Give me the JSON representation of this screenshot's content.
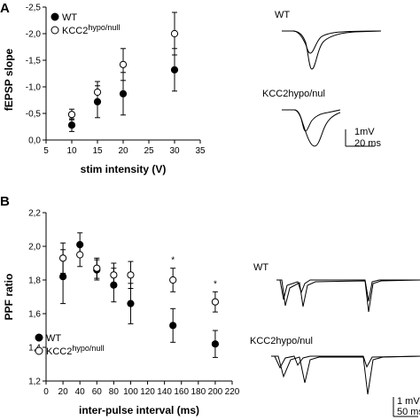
{
  "chart_data": [
    {
      "type": "scatter",
      "panel": "A",
      "xlabel": "stim intensity (V)",
      "ylabel": "fEPSP slope",
      "xlim": [
        5,
        35
      ],
      "ylim": [
        0,
        -2.5
      ],
      "x_ticks": [
        "5",
        "10",
        "15",
        "20",
        "25",
        "30",
        "35"
      ],
      "y_ticks": [
        "0,0",
        "-0,5",
        "-1,0",
        "-1,5",
        "-2,0",
        "-2,5"
      ],
      "x": [
        10,
        15,
        20,
        30
      ],
      "series": [
        {
          "name": "WT",
          "marker": "filled",
          "values": [
            -0.28,
            -0.72,
            -0.87,
            -1.32
          ],
          "errors": [
            0.12,
            0.3,
            0.4,
            0.4
          ]
        },
        {
          "name": "KCC2hypo/null",
          "marker": "open",
          "values": [
            -0.48,
            -0.9,
            -1.42,
            -2.0
          ],
          "errors": [
            0.1,
            0.2,
            0.3,
            0.4
          ]
        }
      ],
      "legend": "top-left"
    },
    {
      "type": "scatter",
      "panel": "B",
      "xlabel": "inter-pulse interval (ms)",
      "ylabel": "PPF ratio",
      "xlim": [
        0,
        220
      ],
      "ylim": [
        1.2,
        2.2
      ],
      "x_ticks": [
        "0",
        "20",
        "40",
        "60",
        "80",
        "100",
        "120",
        "140",
        "160",
        "180",
        "200",
        "220"
      ],
      "y_ticks": [
        "1,2",
        "1,4",
        "1,6",
        "1,8",
        "2,0",
        "2,2"
      ],
      "x": [
        20,
        40,
        60,
        80,
        100,
        150,
        200
      ],
      "series": [
        {
          "name": "WT",
          "marker": "filled",
          "values": [
            1.82,
            2.01,
            1.86,
            1.77,
            1.66,
            1.53,
            1.42
          ],
          "errors": [
            0.16,
            0.07,
            0.06,
            0.1,
            0.12,
            0.1,
            0.08
          ]
        },
        {
          "name": "KCC2hypo/null",
          "marker": "open",
          "values": [
            1.93,
            1.95,
            1.87,
            1.83,
            1.83,
            1.8,
            1.67
          ],
          "errors": [
            0.09,
            0.07,
            0.06,
            0.07,
            0.08,
            0.07,
            0.06
          ]
        }
      ],
      "significance": [
        "*",
        "*"
      ],
      "legend": "bottom-left"
    }
  ],
  "legend_labels": {
    "wt": "WT",
    "kcc2_base": "KCC2",
    "kcc2_sup": "hypo/null"
  },
  "traces": {
    "a_wt": "WT",
    "a_kcc2": "KCC2hypo/nul",
    "a_scale_v": "1mV",
    "a_scale_t": "20 ms",
    "b_wt": "WT",
    "b_kcc2": "KCC2hypo/nul",
    "b_scale_v": "1 mV",
    "b_scale_t": "50 ms"
  },
  "colors": {
    "ink": "#000000",
    "background": "#ffffff"
  }
}
